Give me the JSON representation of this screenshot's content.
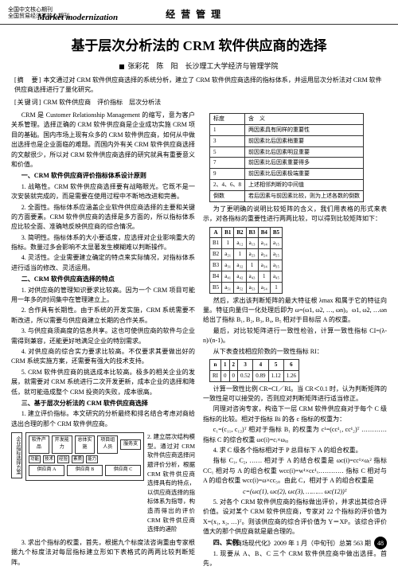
{
  "header": {
    "cn_line1": "全国中文核心期刊",
    "cn_line2": "全国贸易经济类核心期刊",
    "logo_en": "Market modernization",
    "section": "经 营 管 理"
  },
  "title": "基于层次分析法的 CRM 软件供应商的选择",
  "authors": "张彩花　陈　阳　长沙理工大学经济与管理学院",
  "abstract": {
    "label1": "[摘　要]",
    "text1": "本文通过对 CRM 软件供应商选择的系统分析，建立了 CRM 软件供应商选择的指标体系，并运用层次分析法对 CRM 软件供应商选择进行了量化研究。",
    "label2": "[关键词]",
    "text2": "CRM 软件供应商　评价指标　层次分析法"
  },
  "left": {
    "p1": "CRM 是 Customer Relationship Management 的缩写，意为客户关系管理。选择正确的 CRM 软件供应商是企业成功实施 CRM 项目的基础。国内市场上现有众多的 CRM 软件供应商，如何从中做出选择也是企业面临的难题。而国内外有关 CRM 软件供应商选择的文献很少，所以对 CRM 软件供应商选择的研究就具有重要意义和价值。",
    "h1": "一、CRM 软件供应商评价指标体系设计原则",
    "p2": "1. 战略性。CRM 软件供应商选择要有战略眼光。它既不是一次安装就完成的，而是需要在使用过程中不断地改进和完善。",
    "p3": "2. 全面性。指标体系应涵盖企业软件供应商选择的主要和关键的方面要素。CRM 软件供应商的选择是多方面的，所以指标体系应比较全面、准确地反映供应商的综合情况。",
    "p4": "3. 简明性。指标体系的大小要适度，应选择对企业影响重大的指标。数量过多会影响不太显著发生模糊难以判断操作。",
    "p5": "4. 灵活性。企业需要建立确定的特点来实际情况，对指标体系进行适当的修改、灵活运用。",
    "h2": "二、CRM 软件供应商选择的特点",
    "p6": "1. 对供应商的管理知识要求比较高。因为一个 CRM 项目可能用一年多的时间集中在管理建立上。",
    "p7": "2. 合作具有长期性。由于系统的开发实施，CRM 系统需要不断改进，所以需要与供应商建立长期的合作关系。",
    "p8": "3. 与供应商须高度的信息共享。这也可使供应商的软件与企业需得到兼容，还能更好地满足企业的特别需求。",
    "p9": "4. 对供应商的综合实力要求比较高。不仅要求其要做出好的 CRM 系统实施方案，还需要有强大的技术支持。",
    "p10": "5. CRM 软件供应商的挑选成本比较高。极多的相关企业的发展，就需要对 CRM 系统进行二次开发更新，成本企业的选择和降低，就可能造成整个 CRM 投资的失败，成本很高。",
    "h3": "三、基于层次分析法的 CRM 软件供应商选择",
    "p11": "1. 建立评价指标。本文研究的分析最终和排名结合考虑对商给选出合理的那个 CRM 软件供应商。",
    "flow_label": "企业指标选择方案",
    "flow": {
      "r1": [
        "软件产品",
        "开发能力",
        "总体实施",
        "项目组人员",
        "服务支"
      ],
      "r2": [
        "功能",
        "技术",
        "经验",
        "素质",
        "能力"
      ],
      "r3a": "供应商 A",
      "r3b": "供应商 B",
      "r3c": "供应商 C"
    },
    "p12": "2. 建立层次结构模型。通过对 CRM 软件供应商选择问题评价分析，根据 CRM 软件供应商选择具有的特点，以供应商选择的指标体系为指导，构造而得出的评价 CRM 软件供应商选择的递阶",
    "p13": "3. 求出个指标的权重，首先，根据九个标度法咨询重由专家根据九个标度法对每层指标建立形如下表格式的两两比较判断矩阵。"
  },
  "table1": {
    "rows": [
      [
        "标度",
        "含　义"
      ],
      [
        "1",
        "两因素具有同样的重要性"
      ],
      [
        "3",
        "前因素比后因素稍重要"
      ],
      [
        "5",
        "前因素比后因素明显重要"
      ],
      [
        "7",
        "前因素比后因素重要得多"
      ],
      [
        "9",
        "前因素比后因素极端重要"
      ],
      [
        "2、4、6、8",
        "上述相邻判断的中间值"
      ],
      [
        "倒数",
        "若后因素与前因素比较，则为上述各数的倒数"
      ]
    ]
  },
  "right": {
    "p1": "为了更明确的说明比较矩阵的含义，我们用表格的形式来表示，对各指标的重要性进行两两比较，可以得到比较矩阵如下：",
    "p2": "然后，求出该判断矩阵的最大特征根 λmax 和属于它的特征向量。特征向量归一化处理后即为 ω=(ω1, ω2, …, ωn)。ω1, ω2, …ωn 给出了指标 B₁, B₂, B₃, B₄, B₅ 相对于目标层 A 的权重。",
    "p3": "最后，对比较矩阵进行一致性检验，计算一致性指标 CI=(λ-n)/(n-1)。",
    "p4": "从下表查找相应阶数的一致性指标 RI：",
    "p5": "计算一致性比例 CR=CI／RI。当 CR＜0.1 时，认为判断矩阵的一致性是可以接受的，否则应对判断矩阵进行适当修正。",
    "p6": "同理对咨询专家，构造下一层 CRM 软件供应商对于每个 C 级指标的比较。相对于指标 Bi 的各 c 指标的权重为：",
    "p7": "c₁=(c₁₁, c₁₂)ᵀ 相对于指标 B₁ 的权重为 c¹=(cc¹₁, cc¹₂)ᵀ ………… 指标 C 的综合权重 ωc(i)=cᵢ×ωᵢ。",
    "p8": "4. 求 C 级各个指标相对于 P 总目标下 A 的组合权重。",
    "p9": "指标 C₁, C₂, …… 相对于 A 的结合权重是 ωc(i)=cc¹×ωᵢ² 指标 CC₁ 相对与 A 的组合权重 wcc(i)=w¹×cc¹ₓ………… 指标 C 相对与 A 的组合权重 wcc(i)=ω×cc₅。由此 C，相对于 A 的组合权重是",
    "formula": "c=(ωc(1), ωc(2), ωc(3), ……… ωc(12))ᵀ",
    "p10": "5. 对各个 CRM 软件供应商的指标做出评价，并求出其综合评价值。设对某个 CRM 软件供应商，专家对 22 个指标的评价值为 X=(x₁, x₂, …)ᵀ。则该供应商的综合评价值为 Y＝XP。该综合评价值大的那个供应商就是最合理的。",
    "h4": "四、实例",
    "p11": "1. 现要从 A、B、C 三个 CRM 软件供应商中做出选择。首先，"
  },
  "table2": {
    "head": [
      "A",
      "B1",
      "B2",
      "B3",
      "B4",
      "B5"
    ],
    "rows": [
      [
        "B1",
        "1",
        "a₁₂",
        "a₁₃",
        "a₁₄",
        "a₁₅"
      ],
      [
        "B2",
        "a₂₁",
        "1",
        "a₂₃",
        "a₂₄",
        "a₂₅"
      ],
      [
        "B3",
        "a₃₁",
        "a₃₂",
        "1",
        "a₃₄",
        "a₃₅"
      ],
      [
        "B4",
        "a₄₁",
        "a₄₂",
        "a₄₃",
        "1",
        "a₄₅"
      ],
      [
        "B5",
        "a₅₁",
        "a₅₂",
        "a₅₃",
        "a₅₄",
        "1"
      ]
    ]
  },
  "table3": {
    "head": [
      "n",
      "1",
      "2",
      "3",
      "4",
      "5",
      "6"
    ],
    "row": [
      "RI",
      "0",
      "0",
      "0.52",
      "0.89",
      "1.12",
      "1.26"
    ]
  },
  "footer": {
    "text": "《商场现代化》2009 年 1 月（中旬刊）总第 563 期",
    "page": "48"
  }
}
